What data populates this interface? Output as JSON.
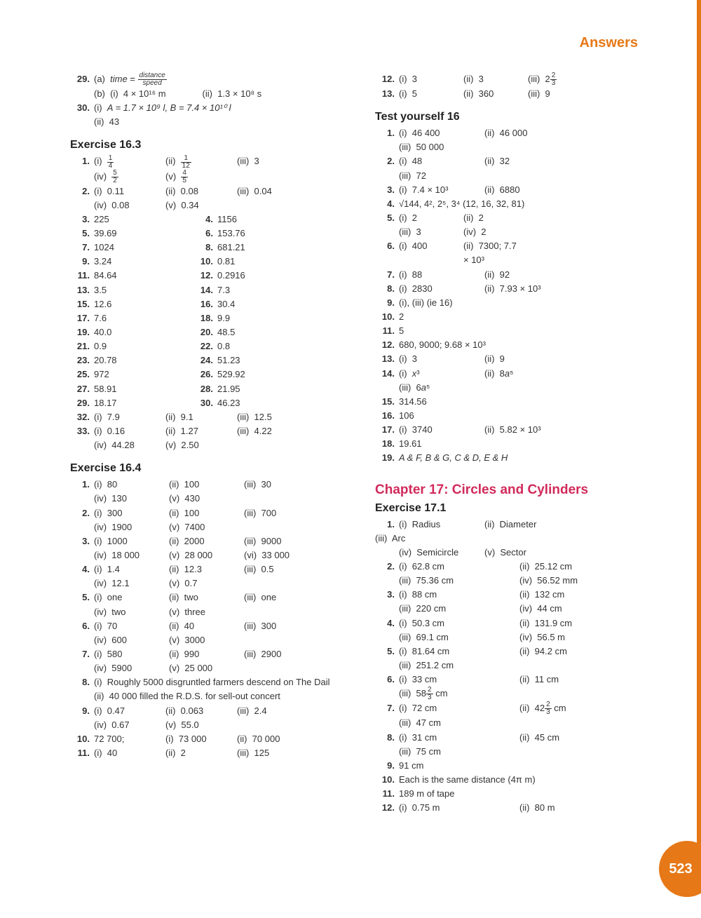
{
  "header": "Answers",
  "page_number": "523",
  "colors": {
    "accent": "#e67817",
    "chapter": "#d12a5b",
    "text": "#333"
  },
  "left": {
    "pre": {
      "q29a": "time = distance / speed",
      "q29b_i": "4 × 10¹⁶ m",
      "q29b_ii": "1.3 × 10⁸ s",
      "q30_i": "A = 1.7 × 10⁹ l, B = 7.4 × 10¹⁰ l",
      "q30_ii": "43"
    },
    "ex163_title": "Exercise 16.3",
    "ex163": {
      "q1": {
        "i": "¼",
        "ii": "1/12",
        "iii": "3",
        "iv": "5/2",
        "v": "4/5"
      },
      "q2": {
        "i": "0.11",
        "ii": "0.08",
        "iii": "0.04",
        "iv": "0.08",
        "v": "0.34"
      },
      "pairs": [
        [
          "3.",
          "225",
          "4.",
          "1156"
        ],
        [
          "5.",
          "39.69",
          "6.",
          "153.76"
        ],
        [
          "7.",
          "1024",
          "8.",
          "681.21"
        ],
        [
          "9.",
          "3.24",
          "10.",
          "0.81"
        ],
        [
          "11.",
          "84.64",
          "12.",
          "0.2916"
        ],
        [
          "13.",
          "3.5",
          "14.",
          "7.3"
        ],
        [
          "15.",
          "12.6",
          "16.",
          "30.4"
        ],
        [
          "17.",
          "7.6",
          "18.",
          "9.9"
        ],
        [
          "19.",
          "40.0",
          "20.",
          "48.5"
        ],
        [
          "21.",
          "0.9",
          "22.",
          "0.8"
        ],
        [
          "23.",
          "20.78",
          "24.",
          "51.23"
        ],
        [
          "25.",
          "972",
          "26.",
          "529.92"
        ],
        [
          "27.",
          "58.91",
          "28.",
          "21.95"
        ],
        [
          "29.",
          "18.17",
          "30.",
          "46.23"
        ]
      ],
      "q32": {
        "i": "7.9",
        "ii": "9.1",
        "iii": "12.5"
      },
      "q33": {
        "i": "0.16",
        "ii": "1.27",
        "iii": "4.22",
        "iv": "44.28",
        "v": "2.50"
      }
    },
    "ex164_title": "Exercise 16.4",
    "ex164": {
      "q1": {
        "i": "80",
        "ii": "100",
        "iii": "30",
        "iv": "130",
        "v": "430"
      },
      "q2": {
        "i": "300",
        "ii": "100",
        "iii": "700",
        "iv": "1900",
        "v": "7400"
      },
      "q3": {
        "i": "1000",
        "ii": "2000",
        "iii": "9000",
        "iv": "18 000",
        "v": "28 000",
        "vi": "33 000"
      },
      "q4": {
        "i": "1.4",
        "ii": "12.3",
        "iii": "0.5",
        "iv": "12.1",
        "v": "0.7"
      },
      "q5": {
        "i": "one",
        "ii": "two",
        "iii": "one",
        "iv": "two",
        "v": "three"
      },
      "q6": {
        "i": "70",
        "ii": "40",
        "iii": "300",
        "iv": "600",
        "v": "3000"
      },
      "q7": {
        "i": "580",
        "ii": "990",
        "iii": "2900",
        "iv": "5900",
        "v": "25 000"
      },
      "q8_i": "Roughly 5000 disgruntled farmers descend on The Dail",
      "q8_ii": "40 000 filled the R.D.S. for sell-out concert",
      "q9": {
        "i": "0.47",
        "ii": "0.063",
        "iii": "2.4",
        "iv": "0.67",
        "v": "55.0"
      },
      "q10": {
        "main": "72 700;",
        "i": "73 000",
        "ii": "70 000"
      },
      "q11": {
        "i": "40",
        "ii": "2",
        "iii": "125"
      }
    }
  },
  "right": {
    "top": {
      "q12": {
        "i": "3",
        "ii": "3",
        "iii": "2⅔"
      },
      "q13": {
        "i": "5",
        "ii": "360",
        "iii": "9"
      }
    },
    "test16_title": "Test yourself 16",
    "test16": {
      "q1": {
        "i": "46 400",
        "ii": "46 000",
        "iii": "50 000"
      },
      "q2": {
        "i": "48",
        "ii": "32",
        "iii": "72"
      },
      "q3": {
        "i": "7.4 × 10³",
        "ii": "6880"
      },
      "q4": "√144, 4², 2⁵, 3⁴ (12, 16, 32, 81)",
      "q5": {
        "i": "2",
        "ii": "2",
        "iii": "3",
        "iv": "2"
      },
      "q6": {
        "i": "400",
        "ii": "7300; 7.7 × 10³"
      },
      "q7": {
        "i": "88",
        "ii": "92"
      },
      "q8": {
        "i": "2830",
        "ii": "7.93 × 10³"
      },
      "q9": "(i), (iii) (ie 16)",
      "q10": "2",
      "q11": "5",
      "q12": "680, 9000; 9.68 × 10³",
      "q13": {
        "i": "3",
        "ii": "9"
      },
      "q14": {
        "i": "x³",
        "ii": "8a⁵",
        "iii": "6a⁵"
      },
      "q15": "314.56",
      "q16": "106",
      "q17": {
        "i": "3740",
        "ii": "5.82 × 10³"
      },
      "q18": "19.61",
      "q19": "A & F, B & G, C & D, E & H"
    },
    "chapter_title": "Chapter 17:  Circles and Cylinders",
    "ex171_title": "Exercise 17.1",
    "ex171": {
      "q1": {
        "i": "Radius",
        "ii": "Diameter",
        "iii": "Arc",
        "iv": "Semicircle",
        "v": "Sector"
      },
      "q2": {
        "i": "62.8 cm",
        "ii": "25.12 cm",
        "iii": "75.36 cm",
        "iv": "56.52 mm"
      },
      "q3": {
        "i": "88 cm",
        "ii": "132 cm",
        "iii": "220 cm",
        "iv": "44 cm"
      },
      "q4": {
        "i": "50.3 cm",
        "ii": "131.9 cm",
        "iii": "69.1 cm",
        "iv": "56.5 m"
      },
      "q5": {
        "i": "81.64 cm",
        "ii": "94.2 cm",
        "iii": "251.2 cm"
      },
      "q6": {
        "i": "33 cm",
        "ii": "11 cm",
        "iii": "58⅔ cm"
      },
      "q7": {
        "i": "72 cm",
        "ii": "42⅔ cm",
        "iii": "47 cm"
      },
      "q8": {
        "i": "31 cm",
        "ii": "45 cm",
        "iii": "75 cm"
      },
      "q9": "91 cm",
      "q10": "Each is the same distance (4π m)",
      "q11": "189 m of tape",
      "q12": {
        "i": "0.75 m",
        "ii": "80 m"
      }
    }
  }
}
